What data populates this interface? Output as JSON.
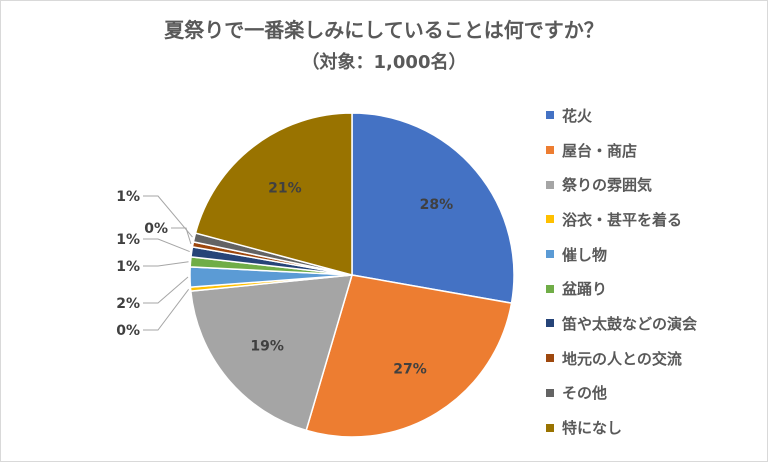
{
  "chart_data": {
    "type": "pie",
    "title": "夏祭りで一番楽しみにしていることは何ですか？",
    "subtitle": "（対象：1,000名）",
    "start_angle_deg": 0,
    "legend_position": "right",
    "categories": [
      "花火",
      "屋台・商店",
      "祭りの雰囲気",
      "浴衣・甚平を着る",
      "催し物",
      "盆踊り",
      "笛や太鼓などの演会",
      "地元の人との交流",
      "その他",
      "特になし"
    ],
    "values": [
      28,
      27,
      19,
      0.4,
      2,
      1,
      1,
      0.5,
      0.9,
      21
    ],
    "data_labels": [
      "28%",
      "27%",
      "19%",
      "0%",
      "2%",
      "1%",
      "1%",
      "0%",
      "1%",
      "21%"
    ],
    "colors": [
      "#4472C4",
      "#ED7D31",
      "#A5A5A5",
      "#FFC000",
      "#5B9BD5",
      "#70AD47",
      "#264478",
      "#9E480E",
      "#636363",
      "#997300"
    ]
  }
}
